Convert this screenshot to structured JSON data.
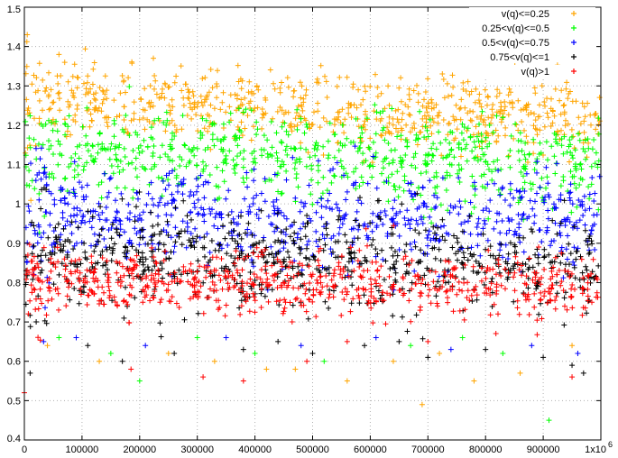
{
  "chart_data": {
    "type": "scatter",
    "title": "",
    "xlabel": "",
    "ylabel": "",
    "xlim": [
      0,
      1000000
    ],
    "ylim": [
      0.4,
      1.5
    ],
    "grid": true,
    "legend_position": "top-right",
    "marker": "+",
    "x_ticks": [
      {
        "value": 0,
        "label": "0"
      },
      {
        "value": 100000,
        "label": "100000"
      },
      {
        "value": 200000,
        "label": "200000"
      },
      {
        "value": 300000,
        "label": "300000"
      },
      {
        "value": 400000,
        "label": "400000"
      },
      {
        "value": 500000,
        "label": "500000"
      },
      {
        "value": 600000,
        "label": "600000"
      },
      {
        "value": 700000,
        "label": "700000"
      },
      {
        "value": 800000,
        "label": "800000"
      },
      {
        "value": 900000,
        "label": "900000"
      },
      {
        "value": 1000000,
        "label": "1x10"
      }
    ],
    "x_exponent_label": "6",
    "y_ticks": [
      {
        "value": 0.4,
        "label": "0.4"
      },
      {
        "value": 0.5,
        "label": "0.5"
      },
      {
        "value": 0.6,
        "label": "0.6"
      },
      {
        "value": 0.7,
        "label": "0.7"
      },
      {
        "value": 0.8,
        "label": "0.8"
      },
      {
        "value": 0.9,
        "label": "0.9"
      },
      {
        "value": 1.0,
        "label": "1"
      },
      {
        "value": 1.1,
        "label": "1.1"
      },
      {
        "value": 1.2,
        "label": "1.2"
      },
      {
        "value": 1.3,
        "label": "1.3"
      },
      {
        "value": 1.4,
        "label": "1.4"
      },
      {
        "value": 1.5,
        "label": "1.5"
      }
    ],
    "series": [
      {
        "name": "v(q)<=0.25",
        "color": "#ffa500",
        "band": {
          "x_start": 0,
          "x_end": 1000000,
          "y_center_start": 1.26,
          "y_center_end": 1.22,
          "spread": 0.045
        },
        "points": [
          [
            5000,
            1.43
          ],
          [
            60000,
            1.38
          ],
          [
            70000,
            1.36
          ],
          [
            690000,
            0.49
          ],
          [
            560000,
            0.55
          ],
          [
            780000,
            0.55
          ],
          [
            130000,
            0.6
          ],
          [
            420000,
            0.58
          ],
          [
            860000,
            0.57
          ],
          [
            40000,
            0.64
          ],
          [
            250000,
            0.62
          ],
          [
            330000,
            0.6
          ],
          [
            640000,
            0.6
          ],
          [
            950000,
            0.64
          ],
          [
            470000,
            0.58
          ],
          [
            720000,
            0.62
          ]
        ]
      },
      {
        "name": "0.25<v(q)<=0.5",
        "color": "#00ff00",
        "band": {
          "x_start": 0,
          "x_end": 1000000,
          "y_center_start": 1.13,
          "y_center_end": 1.1,
          "spread": 0.055
        },
        "points": [
          [
            910000,
            0.45
          ],
          [
            200000,
            0.55
          ],
          [
            150000,
            0.62
          ],
          [
            400000,
            0.62
          ],
          [
            520000,
            0.6
          ],
          [
            670000,
            0.64
          ],
          [
            830000,
            0.62
          ],
          [
            60000,
            0.66
          ],
          [
            300000,
            0.66
          ],
          [
            760000,
            0.66
          ]
        ]
      },
      {
        "name": "0.5<v(q)<=0.75",
        "color": "#0000ff",
        "band": {
          "x_start": 0,
          "x_end": 1000000,
          "y_center_start": 0.97,
          "y_center_end": 0.95,
          "spread": 0.06
        },
        "points": [
          [
            90000,
            0.66
          ],
          [
            210000,
            0.64
          ],
          [
            350000,
            0.66
          ],
          [
            480000,
            0.64
          ],
          [
            610000,
            0.66
          ],
          [
            740000,
            0.63
          ],
          [
            880000,
            0.64
          ],
          [
            960000,
            0.62
          ]
        ]
      },
      {
        "name": "0.75<v(q)<=1",
        "color": "#000000",
        "band": {
          "x_start": 0,
          "x_end": 1000000,
          "y_center_start": 0.87,
          "y_center_end": 0.85,
          "spread": 0.06
        },
        "points": [
          [
            10000,
            0.57
          ],
          [
            970000,
            0.57
          ],
          [
            950000,
            0.59
          ],
          [
            170000,
            0.6
          ],
          [
            260000,
            0.62
          ],
          [
            380000,
            0.63
          ],
          [
            500000,
            0.62
          ],
          [
            590000,
            0.64
          ],
          [
            700000,
            0.61
          ],
          [
            800000,
            0.63
          ],
          [
            110000,
            0.64
          ],
          [
            440000,
            0.65
          ],
          [
            650000,
            0.65
          ],
          [
            900000,
            0.61
          ]
        ]
      },
      {
        "name": "v(q)>1",
        "color": "#ff0000",
        "band": {
          "x_start": 0,
          "x_end": 1000000,
          "y_center_start": 0.8,
          "y_center_end": 0.79,
          "spread": 0.04
        },
        "points": [
          [
            0,
            0.52
          ],
          [
            185000,
            0.58
          ],
          [
            310000,
            0.56
          ],
          [
            380000,
            0.55
          ],
          [
            490000,
            0.6
          ],
          [
            950000,
            0.56
          ],
          [
            560000,
            0.65
          ],
          [
            700000,
            0.65
          ]
        ]
      }
    ]
  }
}
